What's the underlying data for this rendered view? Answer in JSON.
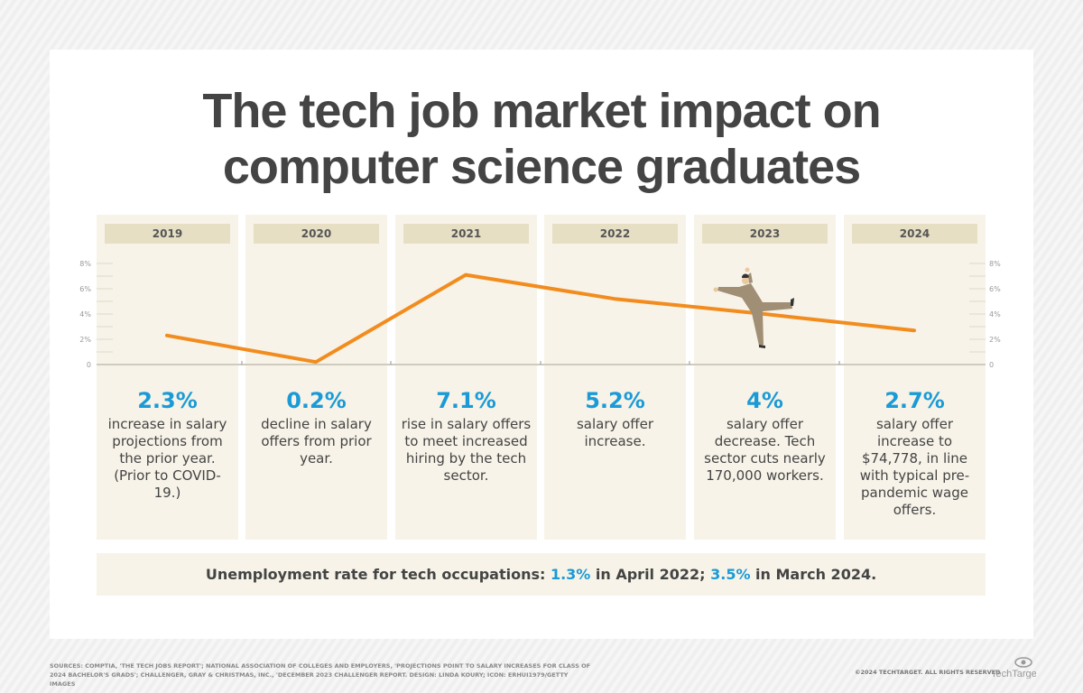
{
  "title_line1": "The tech job market impact on",
  "title_line2": "computer science graduates",
  "colors": {
    "line": "#f28c1e",
    "accent": "#1a9ad6",
    "column_bg": "#f7f3e8",
    "year_bg": "#e6dfc4"
  },
  "chart_data": {
    "type": "line",
    "categories": [
      "2019",
      "2020",
      "2021",
      "2022",
      "2023",
      "2024"
    ],
    "values": [
      2.3,
      0.2,
      7.1,
      5.2,
      4,
      2.7
    ],
    "ylim": [
      0,
      8
    ],
    "yticks": [
      "0",
      "2%",
      "4%",
      "6%",
      "8%"
    ],
    "grid": false
  },
  "columns": [
    {
      "year": "2019",
      "pct": "2.3%",
      "desc": "increase in salary projections from the prior year. (Prior to COVID-19.)"
    },
    {
      "year": "2020",
      "pct": "0.2%",
      "desc": "decline in salary offers from prior year."
    },
    {
      "year": "2021",
      "pct": "7.1%",
      "desc": "rise in salary offers to meet increased hiring by the tech sector."
    },
    {
      "year": "2022",
      "pct": "5.2%",
      "desc": "salary offer increase."
    },
    {
      "year": "2023",
      "pct": "4%",
      "desc": "salary offer decrease. Tech sector cuts nearly 170,000 workers."
    },
    {
      "year": "2024",
      "pct": "2.7%",
      "desc": "salary offer increase to $74,778, in line with typical pre-pandemic wage offers."
    }
  ],
  "bottom": {
    "prefix": "Unemployment rate for tech occupations: ",
    "v1": "1.3%",
    "mid": " in April 2022; ",
    "v2": "3.5%",
    "suffix": " in March 2024."
  },
  "sources": "SOURCES: COMPTIA, 'THE TECH JOBS REPORT'; NATIONAL ASSOCIATION OF COLLEGES AND EMPLOYERS, 'PROJECTIONS POINT TO SALARY INCREASES FOR CLASS OF 2024 BACHELOR'S GRADS'; CHALLENGER, GRAY & CHRISTMAS, INC., 'DECEMBER 2023 CHALLENGER REPORT. DESIGN: LINDA KOURY; ICON: ERHUI1979/GETTY IMAGES",
  "copyright": "©2024 TECHTARGET. ALL RIGHTS RESERVED",
  "logo": "TechTarget"
}
